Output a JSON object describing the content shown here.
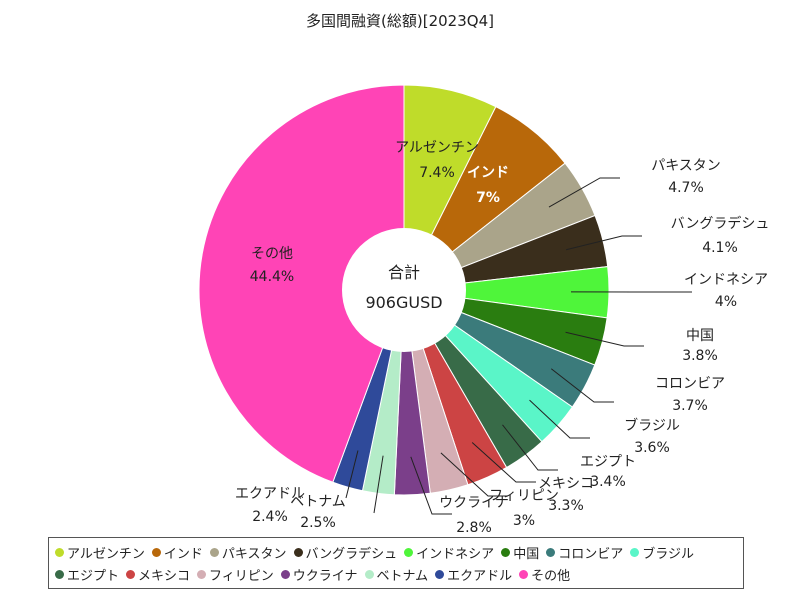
{
  "chart_data": {
    "type": "pie",
    "title": "多国間融資(総額)[2023Q4]",
    "center_label": "合計",
    "center_value": "906GUSD",
    "slices": [
      {
        "name": "アルゼンチン",
        "value": 7.4,
        "label": "7.4%",
        "color": "#bfdc2a"
      },
      {
        "name": "インド",
        "value": 7.0,
        "label": "7%",
        "color": "#b8680a"
      },
      {
        "name": "パキスタン",
        "value": 4.7,
        "label": "4.7%",
        "color": "#aaa48a"
      },
      {
        "name": "バングラデシュ",
        "value": 4.1,
        "label": "4.1%",
        "color": "#3a2e1c"
      },
      {
        "name": "インドネシア",
        "value": 4.0,
        "label": "4%",
        "color": "#4ff53a"
      },
      {
        "name": "中国",
        "value": 3.8,
        "label": "3.8%",
        "color": "#2a7d10"
      },
      {
        "name": "コロンビア",
        "value": 3.7,
        "label": "3.7%",
        "color": "#3b7b7b"
      },
      {
        "name": "ブラジル",
        "value": 3.6,
        "label": "3.6%",
        "color": "#5af5c8"
      },
      {
        "name": "エジプト",
        "value": 3.4,
        "label": "3.4%",
        "color": "#386b48"
      },
      {
        "name": "メキシコ",
        "value": 3.3,
        "label": "3.3%",
        "color": "#cc4444"
      },
      {
        "name": "フィリピン",
        "value": 3.0,
        "label": "3%",
        "color": "#d4aeb4"
      },
      {
        "name": "ウクライナ",
        "value": 2.8,
        "label": "2.8%",
        "color": "#7b3f8a"
      },
      {
        "name": "ベトナム",
        "value": 2.5,
        "label": "2.5%",
        "color": "#b4ecc8"
      },
      {
        "name": "エクアドル",
        "value": 2.4,
        "label": "2.4%",
        "color": "#2f4a9a"
      },
      {
        "name": "その他",
        "value": 44.4,
        "label": "44.4%",
        "color": "#ff44b6"
      }
    ]
  }
}
